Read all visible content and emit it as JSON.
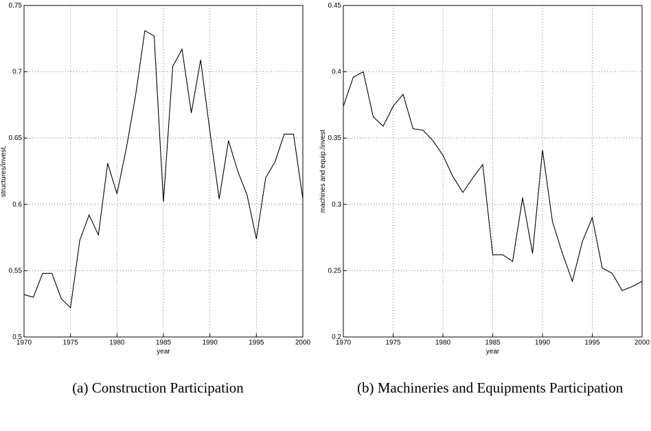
{
  "chart_data": [
    {
      "type": "line",
      "caption": "(a) Construction Participation",
      "xlabel": "year",
      "ylabel": "structures/invest.",
      "x": [
        1970,
        1971,
        1972,
        1973,
        1974,
        1975,
        1976,
        1977,
        1978,
        1979,
        1980,
        1981,
        1982,
        1983,
        1984,
        1985,
        1986,
        1987,
        1988,
        1989,
        1990,
        1991,
        1992,
        1993,
        1994,
        1995,
        1996,
        1997,
        1998,
        1999,
        2000
      ],
      "values": [
        0.532,
        0.53,
        0.548,
        0.548,
        0.529,
        0.522,
        0.573,
        0.592,
        0.577,
        0.631,
        0.608,
        0.642,
        0.682,
        0.731,
        0.727,
        0.602,
        0.704,
        0.717,
        0.669,
        0.709,
        0.655,
        0.604,
        0.648,
        0.625,
        0.607,
        0.574,
        0.62,
        0.632,
        0.653,
        0.653,
        0.604
      ],
      "color": "#000000",
      "xlim": [
        1970,
        2000
      ],
      "xticks": [
        1970,
        1975,
        1980,
        1985,
        1990,
        1995,
        2000
      ],
      "ylim": [
        0.5,
        0.75
      ],
      "yticks": [
        0.5,
        0.55,
        0.6,
        0.65,
        0.7,
        0.75
      ],
      "grid": true
    },
    {
      "type": "line",
      "caption": "(b) Machineries and Equipments Participation",
      "xlabel": "year",
      "ylabel": "machines and equip./invest",
      "x": [
        1970,
        1971,
        1972,
        1973,
        1974,
        1975,
        1976,
        1977,
        1978,
        1979,
        1980,
        1981,
        1982,
        1983,
        1984,
        1985,
        1986,
        1987,
        1988,
        1989,
        1990,
        1991,
        1992,
        1993,
        1994,
        1995,
        1996,
        1997,
        1998,
        1999,
        2000
      ],
      "values": [
        0.374,
        0.396,
        0.4,
        0.366,
        0.359,
        0.374,
        0.383,
        0.357,
        0.356,
        0.348,
        0.337,
        0.321,
        0.309,
        0.32,
        0.33,
        0.262,
        0.262,
        0.257,
        0.305,
        0.263,
        0.341,
        0.287,
        0.263,
        0.242,
        0.272,
        0.29,
        0.252,
        0.248,
        0.235,
        0.238,
        0.242
      ],
      "color": "#000000",
      "xlim": [
        1970,
        2000
      ],
      "xticks": [
        1970,
        1975,
        1980,
        1985,
        1990,
        1995,
        2000
      ],
      "ylim": [
        0.2,
        0.45
      ],
      "yticks": [
        0.2,
        0.25,
        0.3,
        0.35,
        0.4,
        0.45
      ],
      "grid": true
    }
  ]
}
